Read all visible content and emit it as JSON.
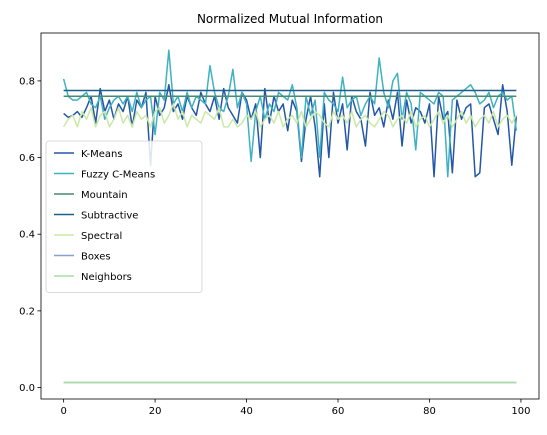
{
  "chart_data": {
    "type": "line",
    "title": "Normalized Mutual Information",
    "xlabel": "",
    "ylabel": "",
    "xlim": [
      -4.95,
      103.95
    ],
    "ylim": [
      -0.03,
      0.925
    ],
    "xticks": [
      0,
      20,
      40,
      60,
      80,
      100
    ],
    "yticks": [
      0.0,
      0.2,
      0.4,
      0.6,
      0.8
    ],
    "xtick_labels": [
      "0",
      "20",
      "40",
      "60",
      "80",
      "100"
    ],
    "ytick_labels": [
      "0.0",
      "0.2",
      "0.4",
      "0.6",
      "0.8"
    ],
    "grid": false,
    "legend_position": "center-left",
    "x": [
      0,
      1,
      2,
      3,
      4,
      5,
      6,
      7,
      8,
      9,
      10,
      11,
      12,
      13,
      14,
      15,
      16,
      17,
      18,
      19,
      20,
      21,
      22,
      23,
      24,
      25,
      26,
      27,
      28,
      29,
      30,
      31,
      32,
      33,
      34,
      35,
      36,
      37,
      38,
      39,
      40,
      41,
      42,
      43,
      44,
      45,
      46,
      47,
      48,
      49,
      50,
      51,
      52,
      53,
      54,
      55,
      56,
      57,
      58,
      59,
      60,
      61,
      62,
      63,
      64,
      65,
      66,
      67,
      68,
      69,
      70,
      71,
      72,
      73,
      74,
      75,
      76,
      77,
      78,
      79,
      80,
      81,
      82,
      83,
      84,
      85,
      86,
      87,
      88,
      89,
      90,
      91,
      92,
      93,
      94,
      95,
      96,
      97,
      98,
      99
    ],
    "series": [
      {
        "name": "K-Means",
        "color": "#2557a7",
        "values": [
          0.715,
          0.705,
          0.71,
          0.72,
          0.705,
          0.73,
          0.76,
          0.69,
          0.78,
          0.72,
          0.75,
          0.7,
          0.74,
          0.72,
          0.76,
          0.68,
          0.75,
          0.73,
          0.77,
          0.58,
          0.76,
          0.71,
          0.73,
          0.79,
          0.72,
          0.74,
          0.7,
          0.76,
          0.73,
          0.71,
          0.77,
          0.74,
          0.72,
          0.76,
          0.7,
          0.78,
          0.73,
          0.71,
          0.69,
          0.77,
          0.75,
          0.7,
          0.74,
          0.6,
          0.78,
          0.69,
          0.76,
          0.72,
          0.74,
          0.67,
          0.75,
          0.72,
          0.59,
          0.7,
          0.76,
          0.68,
          0.55,
          0.74,
          0.6,
          0.77,
          0.69,
          0.74,
          0.62,
          0.76,
          0.72,
          0.7,
          0.63,
          0.77,
          0.71,
          0.73,
          0.68,
          0.75,
          0.7,
          0.77,
          0.63,
          0.75,
          0.69,
          0.73,
          0.72,
          0.69,
          0.74,
          0.55,
          0.76,
          0.7,
          0.72,
          0.56,
          0.75,
          0.7,
          0.73,
          0.74,
          0.55,
          0.56,
          0.73,
          0.74,
          0.7,
          0.66,
          0.79,
          0.72,
          0.58,
          0.71
        ]
      },
      {
        "name": "Fuzzy C-Means",
        "color": "#3fb2c0",
        "values": [
          0.805,
          0.76,
          0.75,
          0.75,
          0.76,
          0.77,
          0.74,
          0.73,
          0.76,
          0.7,
          0.73,
          0.75,
          0.76,
          0.74,
          0.76,
          0.72,
          0.77,
          0.73,
          0.75,
          0.76,
          0.66,
          0.77,
          0.75,
          0.88,
          0.74,
          0.76,
          0.72,
          0.77,
          0.73,
          0.76,
          0.75,
          0.74,
          0.84,
          0.77,
          0.73,
          0.72,
          0.76,
          0.83,
          0.73,
          0.77,
          0.74,
          0.59,
          0.72,
          0.76,
          0.7,
          0.74,
          0.72,
          0.77,
          0.76,
          0.75,
          0.79,
          0.73,
          0.6,
          0.76,
          0.71,
          0.75,
          0.6,
          0.77,
          0.75,
          0.74,
          0.72,
          0.81,
          0.73,
          0.75,
          0.76,
          0.71,
          0.74,
          0.76,
          0.74,
          0.86,
          0.77,
          0.73,
          0.8,
          0.82,
          0.7,
          0.77,
          0.74,
          0.62,
          0.77,
          0.76,
          0.75,
          0.74,
          0.77,
          0.76,
          0.55,
          0.75,
          0.76,
          0.77,
          0.78,
          0.79,
          0.77,
          0.74,
          0.75,
          0.77,
          0.73,
          0.76,
          0.77,
          0.75,
          0.76,
          0.67
        ]
      },
      {
        "name": "Mountain",
        "color": "#4a8a70",
        "values": [
          0.76,
          0.76,
          0.76,
          0.76,
          0.76,
          0.76,
          0.76,
          0.76,
          0.76,
          0.76,
          0.76,
          0.76,
          0.76,
          0.76,
          0.76,
          0.76,
          0.76,
          0.76,
          0.76,
          0.76,
          0.76,
          0.76,
          0.76,
          0.76,
          0.76,
          0.76,
          0.76,
          0.76,
          0.76,
          0.76,
          0.76,
          0.76,
          0.76,
          0.76,
          0.76,
          0.76,
          0.76,
          0.76,
          0.76,
          0.76,
          0.76,
          0.76,
          0.76,
          0.76,
          0.76,
          0.76,
          0.76,
          0.76,
          0.76,
          0.76,
          0.76,
          0.76,
          0.76,
          0.76,
          0.76,
          0.76,
          0.76,
          0.76,
          0.76,
          0.76,
          0.76,
          0.76,
          0.76,
          0.76,
          0.76,
          0.76,
          0.76,
          0.76,
          0.76,
          0.76,
          0.76,
          0.76,
          0.76,
          0.76,
          0.76,
          0.76,
          0.76,
          0.76,
          0.76,
          0.76,
          0.76,
          0.76,
          0.76,
          0.76,
          0.76,
          0.76,
          0.76,
          0.76,
          0.76,
          0.76,
          0.76,
          0.76,
          0.76,
          0.76,
          0.76,
          0.76,
          0.76,
          0.76,
          0.76,
          0.76
        ]
      },
      {
        "name": "Subtractive",
        "color": "#1d5f8a",
        "values": [
          0.775,
          0.775,
          0.775,
          0.775,
          0.775,
          0.775,
          0.775,
          0.775,
          0.775,
          0.775,
          0.775,
          0.775,
          0.775,
          0.775,
          0.775,
          0.775,
          0.775,
          0.775,
          0.775,
          0.775,
          0.775,
          0.775,
          0.775,
          0.775,
          0.775,
          0.775,
          0.775,
          0.775,
          0.775,
          0.775,
          0.775,
          0.775,
          0.775,
          0.775,
          0.775,
          0.775,
          0.775,
          0.775,
          0.775,
          0.775,
          0.775,
          0.775,
          0.775,
          0.775,
          0.775,
          0.775,
          0.775,
          0.775,
          0.775,
          0.775,
          0.775,
          0.775,
          0.775,
          0.775,
          0.775,
          0.775,
          0.775,
          0.775,
          0.775,
          0.775,
          0.775,
          0.775,
          0.775,
          0.775,
          0.775,
          0.775,
          0.775,
          0.775,
          0.775,
          0.775,
          0.775,
          0.775,
          0.775,
          0.775,
          0.775,
          0.775,
          0.775,
          0.775,
          0.775,
          0.775,
          0.775,
          0.775,
          0.775,
          0.775,
          0.775,
          0.775,
          0.775,
          0.775,
          0.775,
          0.775,
          0.775,
          0.775,
          0.775,
          0.775,
          0.775,
          0.775,
          0.775,
          0.775,
          0.775,
          0.775
        ]
      },
      {
        "name": "Spectral",
        "color": "#c9e9a6",
        "values": [
          0.68,
          0.7,
          0.71,
          0.68,
          0.72,
          0.7,
          0.73,
          0.68,
          0.71,
          0.72,
          0.68,
          0.7,
          0.73,
          0.69,
          0.71,
          0.68,
          0.72,
          0.7,
          0.71,
          0.68,
          0.72,
          0.73,
          0.69,
          0.71,
          0.74,
          0.7,
          0.72,
          0.68,
          0.71,
          0.7,
          0.69,
          0.72,
          0.71,
          0.7,
          0.73,
          0.68,
          0.68,
          0.7,
          0.68,
          0.69,
          0.71,
          0.7,
          0.72,
          0.68,
          0.7,
          0.71,
          0.69,
          0.72,
          0.68,
          0.7,
          0.71,
          0.69,
          0.72,
          0.68,
          0.7,
          0.72,
          0.71,
          0.69,
          0.68,
          0.72,
          0.7,
          0.71,
          0.69,
          0.72,
          0.68,
          0.7,
          0.71,
          0.69,
          0.68,
          0.7,
          0.72,
          0.71,
          0.68,
          0.7,
          0.71,
          0.69,
          0.72,
          0.68,
          0.7,
          0.71,
          0.68,
          0.7,
          0.72,
          0.69,
          0.71,
          0.68,
          0.7,
          0.72,
          0.69,
          0.71,
          0.68,
          0.7,
          0.71,
          0.69,
          0.72,
          0.68,
          0.7,
          0.71,
          0.69,
          0.71
        ]
      },
      {
        "name": "Boxes",
        "color": "#8aa0cf",
        "values": [
          0.013,
          0.013,
          0.013,
          0.013,
          0.013,
          0.013,
          0.013,
          0.013,
          0.013,
          0.013,
          0.013,
          0.013,
          0.013,
          0.013,
          0.013,
          0.013,
          0.013,
          0.013,
          0.013,
          0.013,
          0.013,
          0.013,
          0.013,
          0.013,
          0.013,
          0.013,
          0.013,
          0.013,
          0.013,
          0.013,
          0.013,
          0.013,
          0.013,
          0.013,
          0.013,
          0.013,
          0.013,
          0.013,
          0.013,
          0.013,
          0.013,
          0.013,
          0.013,
          0.013,
          0.013,
          0.013,
          0.013,
          0.013,
          0.013,
          0.013,
          0.013,
          0.013,
          0.013,
          0.013,
          0.013,
          0.013,
          0.013,
          0.013,
          0.013,
          0.013,
          0.013,
          0.013,
          0.013,
          0.013,
          0.013,
          0.013,
          0.013,
          0.013,
          0.013,
          0.013,
          0.013,
          0.013,
          0.013,
          0.013,
          0.013,
          0.013,
          0.013,
          0.013,
          0.013,
          0.013,
          0.013,
          0.013,
          0.013,
          0.013,
          0.013,
          0.013,
          0.013,
          0.013,
          0.013,
          0.013,
          0.013,
          0.013,
          0.013,
          0.013,
          0.013,
          0.013,
          0.013,
          0.013,
          0.013,
          0.013
        ]
      },
      {
        "name": "Neighbors",
        "color": "#a6e0a0",
        "values": [
          0.013,
          0.013,
          0.013,
          0.013,
          0.013,
          0.013,
          0.013,
          0.013,
          0.013,
          0.013,
          0.013,
          0.013,
          0.013,
          0.013,
          0.013,
          0.013,
          0.013,
          0.013,
          0.013,
          0.013,
          0.013,
          0.013,
          0.013,
          0.013,
          0.013,
          0.013,
          0.013,
          0.013,
          0.013,
          0.013,
          0.013,
          0.013,
          0.013,
          0.013,
          0.013,
          0.013,
          0.013,
          0.013,
          0.013,
          0.013,
          0.013,
          0.013,
          0.013,
          0.013,
          0.013,
          0.013,
          0.013,
          0.013,
          0.013,
          0.013,
          0.013,
          0.013,
          0.013,
          0.013,
          0.013,
          0.013,
          0.013,
          0.013,
          0.013,
          0.013,
          0.013,
          0.013,
          0.013,
          0.013,
          0.013,
          0.013,
          0.013,
          0.013,
          0.013,
          0.013,
          0.013,
          0.013,
          0.013,
          0.013,
          0.013,
          0.013,
          0.013,
          0.013,
          0.013,
          0.013,
          0.013,
          0.013,
          0.013,
          0.013,
          0.013,
          0.013,
          0.013,
          0.013,
          0.013,
          0.013,
          0.013,
          0.013,
          0.013,
          0.013,
          0.013,
          0.013,
          0.013,
          0.013,
          0.013,
          0.013
        ]
      }
    ]
  }
}
